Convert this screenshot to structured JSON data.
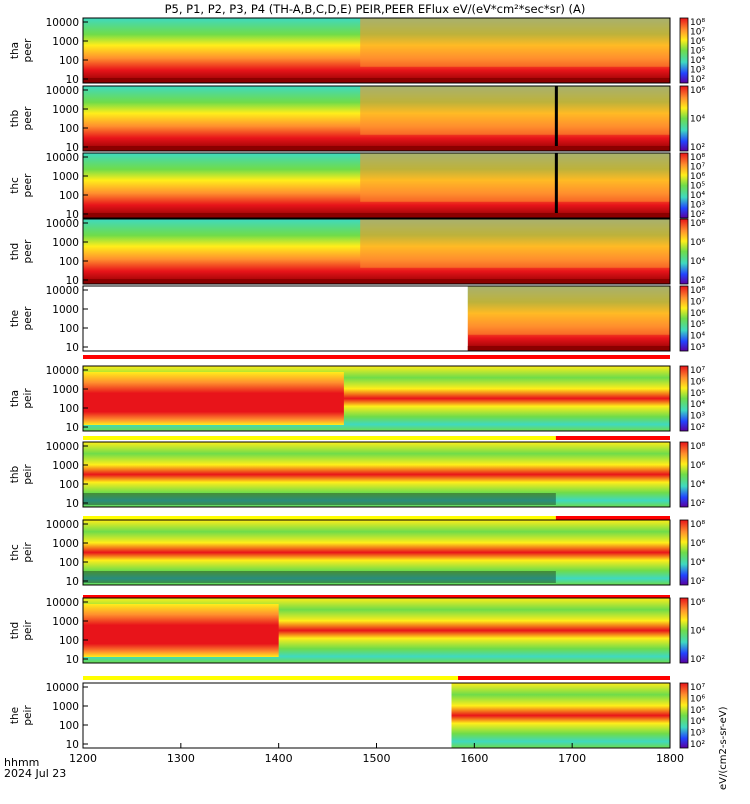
{
  "title": "P5, P1, P2, P3, P4 (TH-A,B,C,D,E) PEIR,PEER EFlux eV/(eV*cm²*sec*sr) (A)",
  "time_axis": {
    "ticks": [
      "1200",
      "1300",
      "1400",
      "1500",
      "1600",
      "1700",
      "1800"
    ],
    "label": "hhmm",
    "date": "2024 Jul 23"
  },
  "colorbar_side_label": "eV/(cm2-s-sr-eV)",
  "colors": {
    "dark_red": "#8b0000",
    "red": "#e8141a",
    "orange": "#ff8f2e",
    "yellow": "#ffee1a",
    "green": "#6fdc4a",
    "cyan": "#3fd9c0",
    "blue": "#2244ff",
    "black": "#000000",
    "status_red": "#ff0000",
    "status_yellow": "#ffff00"
  },
  "chart_data": [
    {
      "type": "heatmap",
      "probe": "tha",
      "species": "peer",
      "ylabel_line1": "tha",
      "ylabel_line2": "peer",
      "yticks": [
        "10000",
        "1000",
        "100",
        "10"
      ],
      "cbar_ticks": [
        "10⁸",
        "10⁷",
        "10⁶",
        "10⁵",
        "10⁴",
        "10³",
        "10²"
      ],
      "data_start": "1200",
      "scale": "log",
      "status_bar": "none"
    },
    {
      "type": "heatmap",
      "probe": "thb",
      "species": "peer",
      "ylabel_line1": "thb",
      "ylabel_line2": "peer",
      "yticks": [
        "10000",
        "1000",
        "100",
        "10"
      ],
      "cbar_ticks": [
        "10⁶",
        "10⁴",
        "10²"
      ],
      "data_start": "1200",
      "scale": "log",
      "status_bar": "none"
    },
    {
      "type": "heatmap",
      "probe": "thc",
      "species": "peer",
      "ylabel_line1": "thc",
      "ylabel_line2": "peer",
      "yticks": [
        "10000",
        "1000",
        "100",
        "10"
      ],
      "cbar_ticks": [
        "10⁸",
        "10⁷",
        "10⁶",
        "10⁵",
        "10⁴",
        "10³",
        "10²"
      ],
      "data_start": "1200",
      "scale": "log",
      "status_bar": "none"
    },
    {
      "type": "heatmap",
      "probe": "thd",
      "species": "peer",
      "ylabel_line1": "thd",
      "ylabel_line2": "peer",
      "yticks": [
        "10000",
        "1000",
        "100",
        "10"
      ],
      "cbar_ticks": [
        "10⁸",
        "10⁶",
        "10⁴",
        "10²"
      ],
      "data_start": "1200",
      "scale": "log",
      "status_bar": "none"
    },
    {
      "type": "heatmap",
      "probe": "the",
      "species": "peer",
      "ylabel_line1": "the",
      "ylabel_line2": "peer",
      "yticks": [
        "10000",
        "1000",
        "100",
        "10"
      ],
      "cbar_ticks": [
        "10⁸",
        "10⁷",
        "10⁶",
        "10⁵",
        "10⁴",
        "10³"
      ],
      "data_start": "1556",
      "scale": "log",
      "status_bar": "red"
    },
    {
      "type": "heatmap",
      "probe": "tha",
      "species": "peir",
      "ylabel_line1": "tha",
      "ylabel_line2": "peir",
      "yticks": [
        "10000",
        "1000",
        "100",
        "10"
      ],
      "cbar_ticks": [
        "10⁷",
        "10⁶",
        "10⁵",
        "10⁴",
        "10³",
        "10²"
      ],
      "data_start": "1200",
      "scale": "log",
      "status_bar": "yellow-red"
    },
    {
      "type": "heatmap",
      "probe": "thb",
      "species": "peir",
      "ylabel_line1": "thb",
      "ylabel_line2": "peir",
      "yticks": [
        "10000",
        "1000",
        "100",
        "10"
      ],
      "cbar_ticks": [
        "10⁸",
        "10⁶",
        "10⁴",
        "10²"
      ],
      "data_start": "1200",
      "scale": "log",
      "status_bar": "yellow-red"
    },
    {
      "type": "heatmap",
      "probe": "thc",
      "species": "peir",
      "ylabel_line1": "thc",
      "ylabel_line2": "peir",
      "yticks": [
        "10000",
        "1000",
        "100",
        "10"
      ],
      "cbar_ticks": [
        "10⁸",
        "10⁶",
        "10⁴",
        "10²"
      ],
      "data_start": "1200",
      "scale": "log",
      "status_bar": "red"
    },
    {
      "type": "heatmap",
      "probe": "thd",
      "species": "peir",
      "ylabel_line1": "thd",
      "ylabel_line2": "peir",
      "yticks": [
        "10000",
        "1000",
        "100",
        "10"
      ],
      "cbar_ticks": [
        "10⁶",
        "10⁴",
        "10²"
      ],
      "data_start": "1200",
      "scale": "log",
      "status_bar": "yellow-red"
    },
    {
      "type": "heatmap",
      "probe": "the",
      "species": "peir",
      "ylabel_line1": "the",
      "ylabel_line2": "peir",
      "yticks": [
        "10000",
        "1000",
        "100",
        "10"
      ],
      "cbar_ticks": [
        "10⁷",
        "10⁶",
        "10⁵",
        "10⁴",
        "10³",
        "10²"
      ],
      "data_start": "1546",
      "scale": "log",
      "status_bar": "none"
    }
  ]
}
